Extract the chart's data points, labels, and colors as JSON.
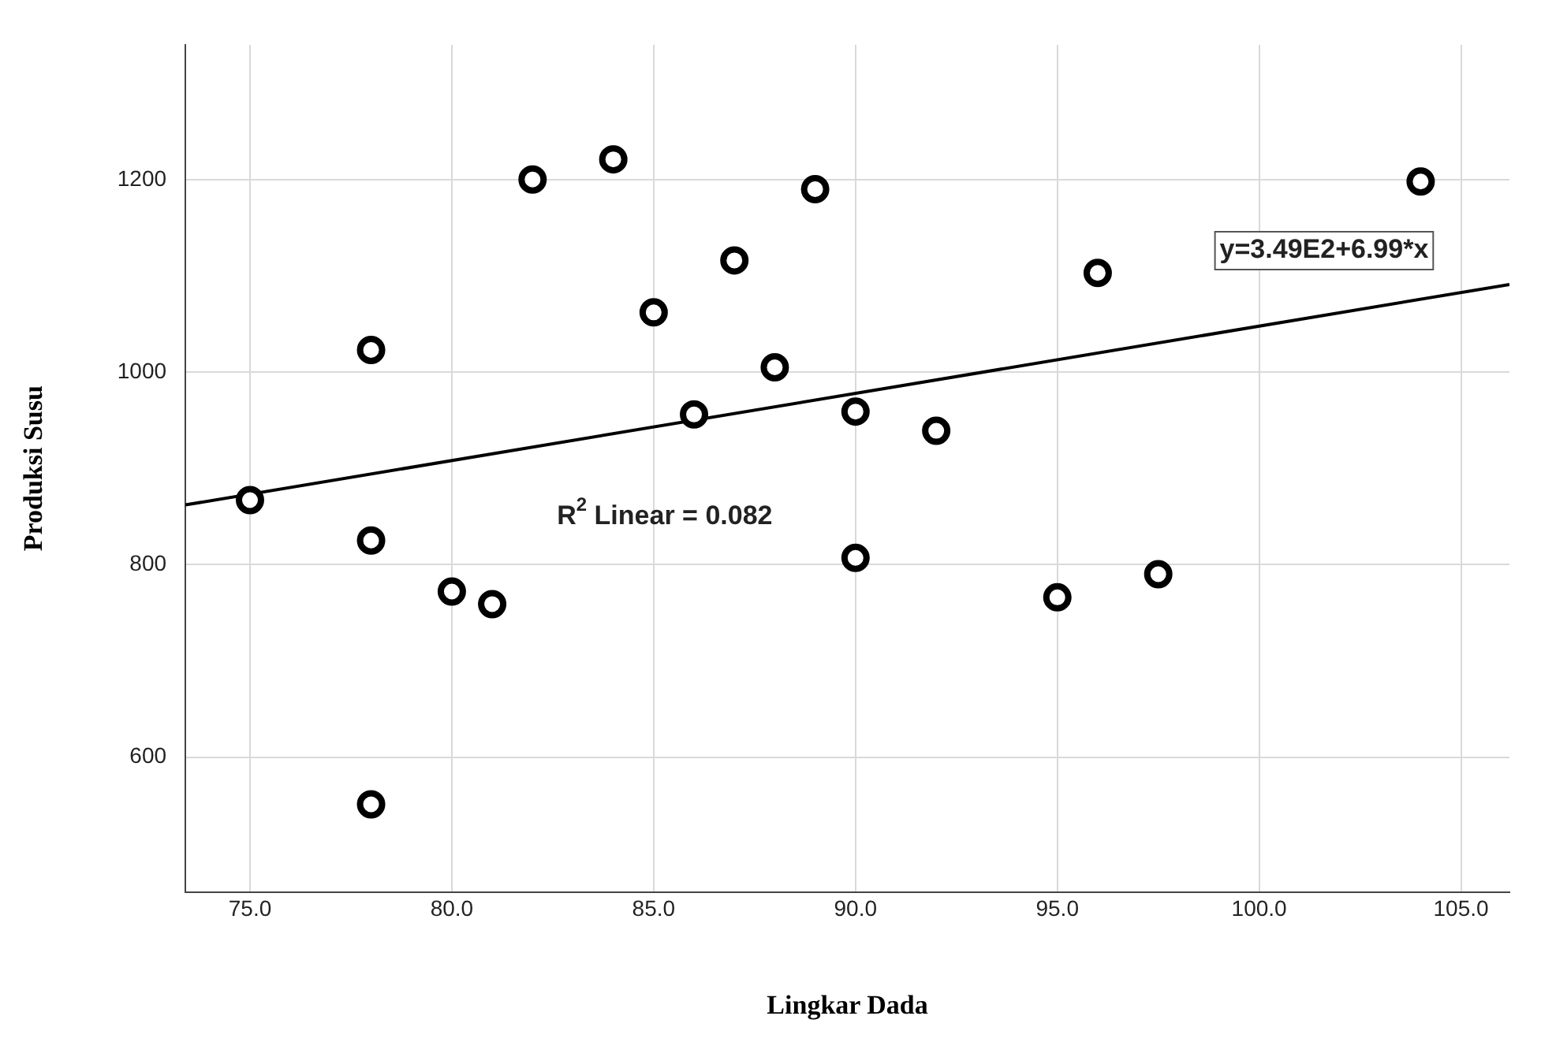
{
  "chart_data": {
    "type": "scatter",
    "xlabel": "Lingkar Dada",
    "ylabel": "Produksi Susu",
    "x": [
      75,
      78,
      78,
      78,
      80,
      81,
      82,
      84,
      85,
      86,
      87,
      88,
      89,
      90,
      90,
      92,
      95,
      96,
      97.5,
      104
    ],
    "series": [
      {
        "type": "scatter",
        "color": "#000000",
        "marker": "circle",
        "values": [
          867,
          1023,
          825,
          551,
          772,
          759,
          1200,
          1221,
          1062,
          956,
          1116,
          1005,
          1190,
          959,
          807,
          939,
          766,
          1103,
          790,
          1198
        ]
      },
      {
        "type": "line",
        "color": "#000000",
        "marker": "none",
        "line_style": "solid",
        "x": [
          73.4,
          106.2
        ],
        "values": [
          862,
          1091
        ]
      }
    ],
    "xlim": [
      73.4,
      106.2
    ],
    "xticks": [
      {
        "value": 75,
        "label": "75.0"
      },
      {
        "value": 80,
        "label": "80.0"
      },
      {
        "value": 85,
        "label": "85.0"
      },
      {
        "value": 90,
        "label": "90.0"
      },
      {
        "value": 95,
        "label": "95.0"
      },
      {
        "value": 100,
        "label": "100.0"
      },
      {
        "value": 105,
        "label": "105.0"
      }
    ],
    "ylim": [
      460,
      1340
    ],
    "yticks": [
      600,
      800,
      1000,
      1200
    ],
    "grid": true,
    "legend": false,
    "annotations": [
      "R$^{2}$ Linear = 0.082",
      "y=3.49E2+6.99*x"
    ]
  }
}
